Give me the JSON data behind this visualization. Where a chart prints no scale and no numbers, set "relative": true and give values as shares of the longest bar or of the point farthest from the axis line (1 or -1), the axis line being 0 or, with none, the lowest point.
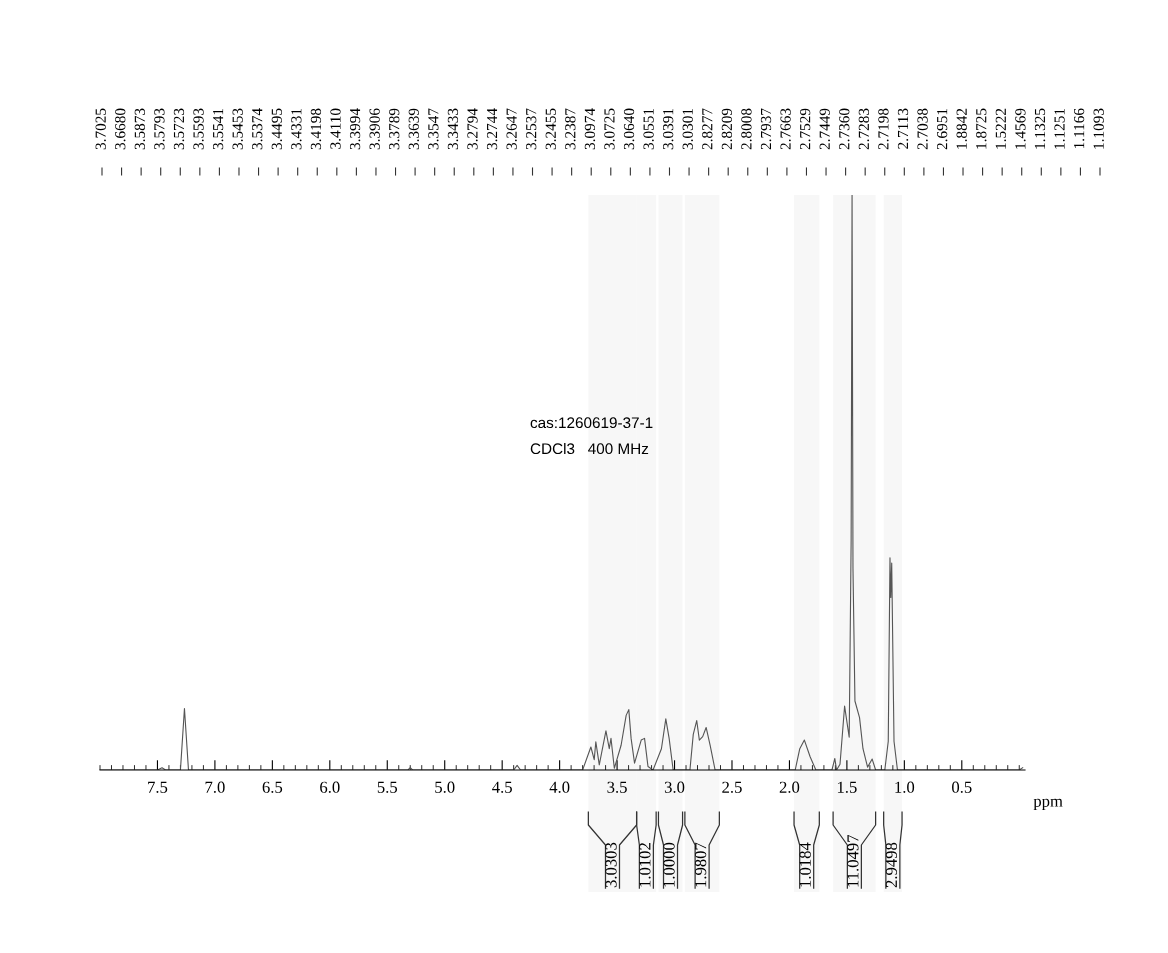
{
  "chart_data": {
    "type": "line",
    "relative": true,
    "xlabel": "ppm",
    "xlim": [
      8.0,
      -0.05
    ],
    "xticks": [
      7.5,
      {
        "value": 7,
        "label": "7.0"
      },
      6.5,
      {
        "value": 6,
        "label": "6.0"
      },
      5.5,
      {
        "value": 5,
        "label": "5.0"
      },
      4.5,
      {
        "value": 4,
        "label": "4.0"
      },
      3.5,
      {
        "value": 3,
        "label": "3.0"
      },
      2.5,
      {
        "value": 2,
        "label": "2.0"
      },
      1.5,
      {
        "value": 1,
        "label": "1.0"
      },
      0.5
    ],
    "grid": false,
    "marker": "none",
    "line_style": "solid",
    "series": [
      {
        "color": "#555555",
        "x": [
          8.0,
          7.5,
          7.46,
          7.43,
          7.3,
          7.265,
          7.23,
          5.32,
          5.3,
          5.28,
          4.4,
          4.37,
          4.34,
          3.86,
          3.8,
          3.728,
          3.699,
          3.685,
          3.655,
          3.597,
          3.568,
          3.553,
          3.524,
          3.465,
          3.421,
          3.398,
          3.378,
          3.348,
          3.29,
          3.261,
          3.231,
          3.187,
          3.114,
          3.076,
          3.047,
          3.012,
          2.866,
          2.837,
          2.807,
          2.784,
          2.755,
          2.725,
          2.69,
          2.647,
          2.0,
          1.95,
          1.91,
          1.87,
          1.82,
          1.77,
          1.63,
          1.605,
          1.59,
          1.56,
          1.52,
          1.48,
          1.463,
          1.455,
          1.447,
          1.43,
          1.39,
          1.36,
          1.32,
          1.28,
          1.25,
          1.17,
          1.14,
          1.125,
          1.118,
          1.11,
          1.09,
          1.06,
          0.0,
          -0.03
        ],
        "values": [
          0,
          0,
          0.004,
          0,
          0,
          0.107,
          0,
          0,
          0.004,
          0,
          0,
          0.008,
          0,
          0,
          0,
          0.04,
          0.018,
          0.049,
          0.009,
          0.068,
          0.037,
          0.055,
          0.003,
          0.043,
          0.095,
          0.105,
          0.055,
          0.012,
          0.052,
          0.055,
          0.006,
          0,
          0.037,
          0.089,
          0.055,
          0,
          0,
          0.062,
          0.086,
          0.052,
          0.058,
          0.074,
          0.043,
          0,
          0,
          0,
          0.037,
          0.052,
          0.023,
          0,
          0,
          0.02,
          0,
          0.01,
          0.111,
          0.057,
          0.4,
          1.0,
          0.35,
          0.12,
          0.091,
          0.037,
          0.005,
          0.019,
          0,
          0,
          0.05,
          0.369,
          0.3,
          0.36,
          0.05,
          0,
          0,
          0.004
        ]
      }
    ],
    "bands": [
      {
        "axis": "x",
        "from": 3.75,
        "to": 3.33,
        "label": "3.0303"
      },
      {
        "axis": "x",
        "from": 3.33,
        "to": 3.16,
        "label": "1.0102"
      },
      {
        "axis": "x",
        "from": 3.14,
        "to": 2.93,
        "label": "1.0000"
      },
      {
        "axis": "x",
        "from": 2.91,
        "to": 2.61,
        "label": "1.9807"
      },
      {
        "axis": "x",
        "from": 1.96,
        "to": 1.74,
        "label": "1.0184"
      },
      {
        "axis": "x",
        "from": 1.62,
        "to": 1.25,
        "label": "11.0497"
      },
      {
        "axis": "x",
        "from": 1.18,
        "to": 1.02,
        "label": "2.9498"
      }
    ],
    "annotations": [
      "3.7025",
      "3.6680",
      "3.5873",
      "3.5793",
      "3.5723",
      "3.5593",
      "3.5541",
      "3.5453",
      "3.5374",
      "3.4495",
      "3.4331",
      "3.4198",
      "3.4110",
      "3.3994",
      "3.3906",
      "3.3789",
      "3.3639",
      "3.3547",
      "3.3433",
      "3.2794",
      "3.2744",
      "3.2647",
      "3.2537",
      "3.2455",
      "3.2387",
      "3.0974",
      "3.0725",
      "3.0640",
      "3.0551",
      "3.0391",
      "3.0301",
      "2.8277",
      "2.8209",
      "2.8008",
      "2.7937",
      "2.7663",
      "2.7529",
      "2.7449",
      "2.7360",
      "2.7283",
      "2.7198",
      "2.7113",
      "2.7038",
      "2.6951",
      "1.8842",
      "1.8725",
      "1.5222",
      "1.4569",
      "1.1325",
      "1.1251",
      "1.1166",
      "1.1093",
      "cas:1260619-37-1",
      "CDCl3   400 MHz"
    ]
  }
}
